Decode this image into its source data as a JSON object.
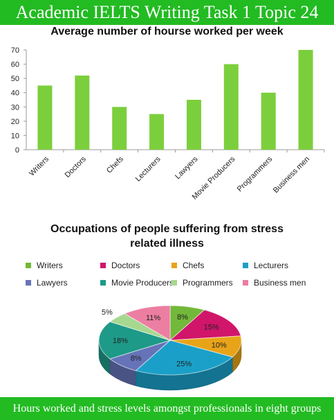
{
  "header": {
    "title": "Academic IELTS Writing Task 1 Topic 24"
  },
  "footer": {
    "caption": "Hours worked and stress levels amongst professionals in eight groups"
  },
  "chart_data": [
    {
      "type": "bar",
      "title": "Average number of hourse worked per week",
      "categories": [
        "Writers",
        "Doctors",
        "Chefs",
        "Lecturers",
        "Lawyers",
        "Movie Producers",
        "Programmers",
        "Business men"
      ],
      "values": [
        45,
        52,
        30,
        25,
        35,
        60,
        40,
        70
      ],
      "ylim": [
        0,
        70
      ],
      "yticks": [
        0,
        10,
        20,
        30,
        40,
        50,
        60,
        70
      ],
      "color": "#7ccf3c",
      "grid": false,
      "xlabel": "",
      "ylabel": ""
    },
    {
      "type": "pie",
      "title_lines": [
        "Occupations of people suffering from stress",
        "related illness"
      ],
      "style": "3d",
      "legend_position": "top",
      "labels": [
        "Writers",
        "Doctors",
        "Chefs",
        "Lecturers",
        "Lawyers",
        "Movie Producers",
        "Programmers",
        "Business men"
      ],
      "values": [
        8,
        15,
        10,
        25,
        8,
        18,
        5,
        11
      ],
      "value_labels": [
        "8%",
        "15%",
        "10%",
        "25%",
        "8%",
        "18%",
        "5%",
        "11%"
      ],
      "colors": [
        "#72b83a",
        "#d0156a",
        "#e8a418",
        "#1aa0c8",
        "#6673b8",
        "#1e9a88",
        "#a6d890",
        "#ec7ea2"
      ]
    }
  ]
}
